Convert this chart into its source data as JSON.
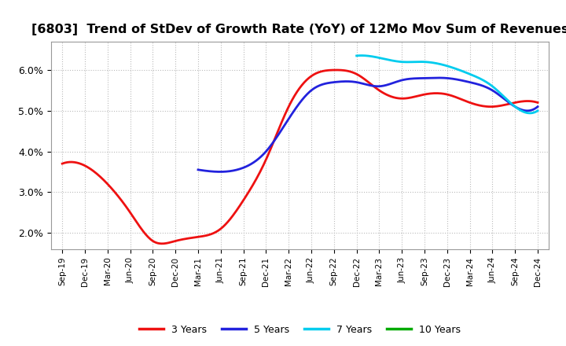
{
  "title": "[6803]  Trend of StDev of Growth Rate (YoY) of 12Mo Mov Sum of Revenues",
  "title_fontsize": 11.5,
  "background_color": "#ffffff",
  "plot_bg_color": "#ffffff",
  "grid_color": "#aaaaaa",
  "ylim": [
    0.016,
    0.067
  ],
  "yticks": [
    0.02,
    0.03,
    0.04,
    0.05,
    0.06
  ],
  "ytick_labels": [
    "2.0%",
    "3.0%",
    "4.0%",
    "5.0%",
    "6.0%"
  ],
  "x_labels": [
    "Sep-19",
    "Dec-19",
    "Mar-20",
    "Jun-20",
    "Sep-20",
    "Dec-20",
    "Mar-21",
    "Jun-21",
    "Sep-21",
    "Dec-21",
    "Mar-22",
    "Jun-22",
    "Sep-22",
    "Dec-22",
    "Mar-23",
    "Jun-23",
    "Sep-23",
    "Dec-23",
    "Mar-24",
    "Jun-24",
    "Sep-24",
    "Dec-24"
  ],
  "series": {
    "3 Years": {
      "color": "#ee1111",
      "linewidth": 2.0,
      "data_x": [
        0,
        1,
        2,
        3,
        4,
        5,
        6,
        7,
        8,
        9,
        10,
        11,
        12,
        13,
        14,
        15,
        16,
        17,
        18,
        19,
        20,
        21
      ],
      "data_y": [
        0.037,
        0.0365,
        0.032,
        0.025,
        0.018,
        0.018,
        0.019,
        0.021,
        0.028,
        0.038,
        0.051,
        0.0585,
        0.06,
        0.059,
        0.055,
        0.053,
        0.054,
        0.054,
        0.052,
        0.051,
        0.052,
        0.052
      ]
    },
    "5 Years": {
      "color": "#2222dd",
      "linewidth": 2.0,
      "data_x": [
        6,
        7,
        8,
        9,
        10,
        11,
        12,
        13,
        14,
        15,
        16,
        17,
        18,
        19,
        20,
        21
      ],
      "data_y": [
        0.0355,
        0.035,
        0.036,
        0.04,
        0.048,
        0.055,
        0.057,
        0.057,
        0.056,
        0.0575,
        0.058,
        0.058,
        0.057,
        0.055,
        0.051,
        0.051
      ]
    },
    "7 Years": {
      "color": "#00ccee",
      "linewidth": 2.0,
      "data_x": [
        13,
        14,
        15,
        16,
        17,
        18,
        19,
        20,
        21
      ],
      "data_y": [
        0.0635,
        0.063,
        0.062,
        0.062,
        0.061,
        0.059,
        0.056,
        0.051,
        0.05
      ]
    },
    "10 Years": {
      "color": "#00aa00",
      "linewidth": 2.0,
      "data_x": [],
      "data_y": []
    }
  },
  "legend_labels": [
    "3 Years",
    "5 Years",
    "7 Years",
    "10 Years"
  ],
  "legend_colors": [
    "#ee1111",
    "#2222dd",
    "#00ccee",
    "#00aa00"
  ]
}
